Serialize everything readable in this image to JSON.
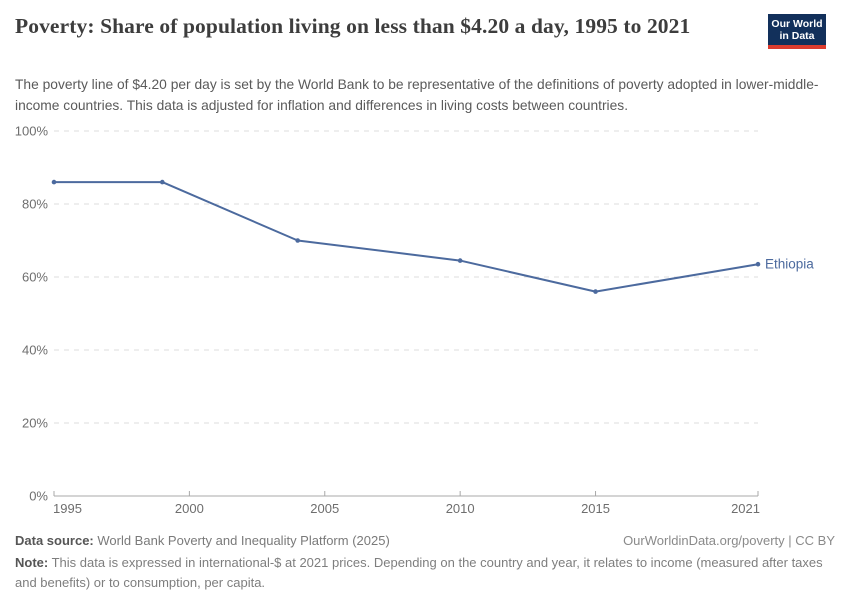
{
  "header": {
    "title": "Poverty: Share of population living on less than $4.20 a day, 1995 to 2021",
    "subtitle": "The poverty line of $4.20 per day is set by the World Bank to be representative of the definitions of poverty adopted in lower-middle-income countries. This data is adjusted for inflation and differences in living costs between countries."
  },
  "logo": {
    "line1": "Our World",
    "line2": "in Data"
  },
  "colors": {
    "line": "#4c6a9e",
    "logo_bg": "#12305b",
    "logo_accent": "#dc3c2e",
    "grid": "#dcdcdc",
    "axis": "#a8a8a8",
    "tick_label": "#6e6e6e"
  },
  "chart_data": {
    "type": "line",
    "title": "Poverty: Share of population living on less than $4.20 a day, 1995 to 2021",
    "x": [
      1995,
      1999,
      2004,
      2010,
      2015,
      2021
    ],
    "series": [
      {
        "name": "Ethiopia",
        "color": "#4c6a9e",
        "values": [
          86,
          86,
          70,
          64.5,
          56,
          63.5
        ]
      }
    ],
    "xlabel": "",
    "ylabel": "",
    "xlim": [
      1995,
      2021
    ],
    "ylim": [
      0,
      100
    ],
    "yticks": [
      0,
      20,
      40,
      60,
      80,
      100
    ],
    "ytick_suffix": "%",
    "xticks": [
      1995,
      2000,
      2005,
      2010,
      2015,
      2021
    ],
    "grid": "horizontal-dashed",
    "legend": "end-of-line-label"
  },
  "footer": {
    "datasource_label": "Data source:",
    "datasource_text": " World Bank Poverty and Inequality Platform (2025)",
    "credit": "OurWorldinData.org/poverty | CC BY",
    "note_label": "Note:",
    "note_text": " This data is expressed in international-$ at 2021 prices. Depending on the country and year, it relates to income (measured after taxes and benefits) or to consumption, per capita."
  }
}
